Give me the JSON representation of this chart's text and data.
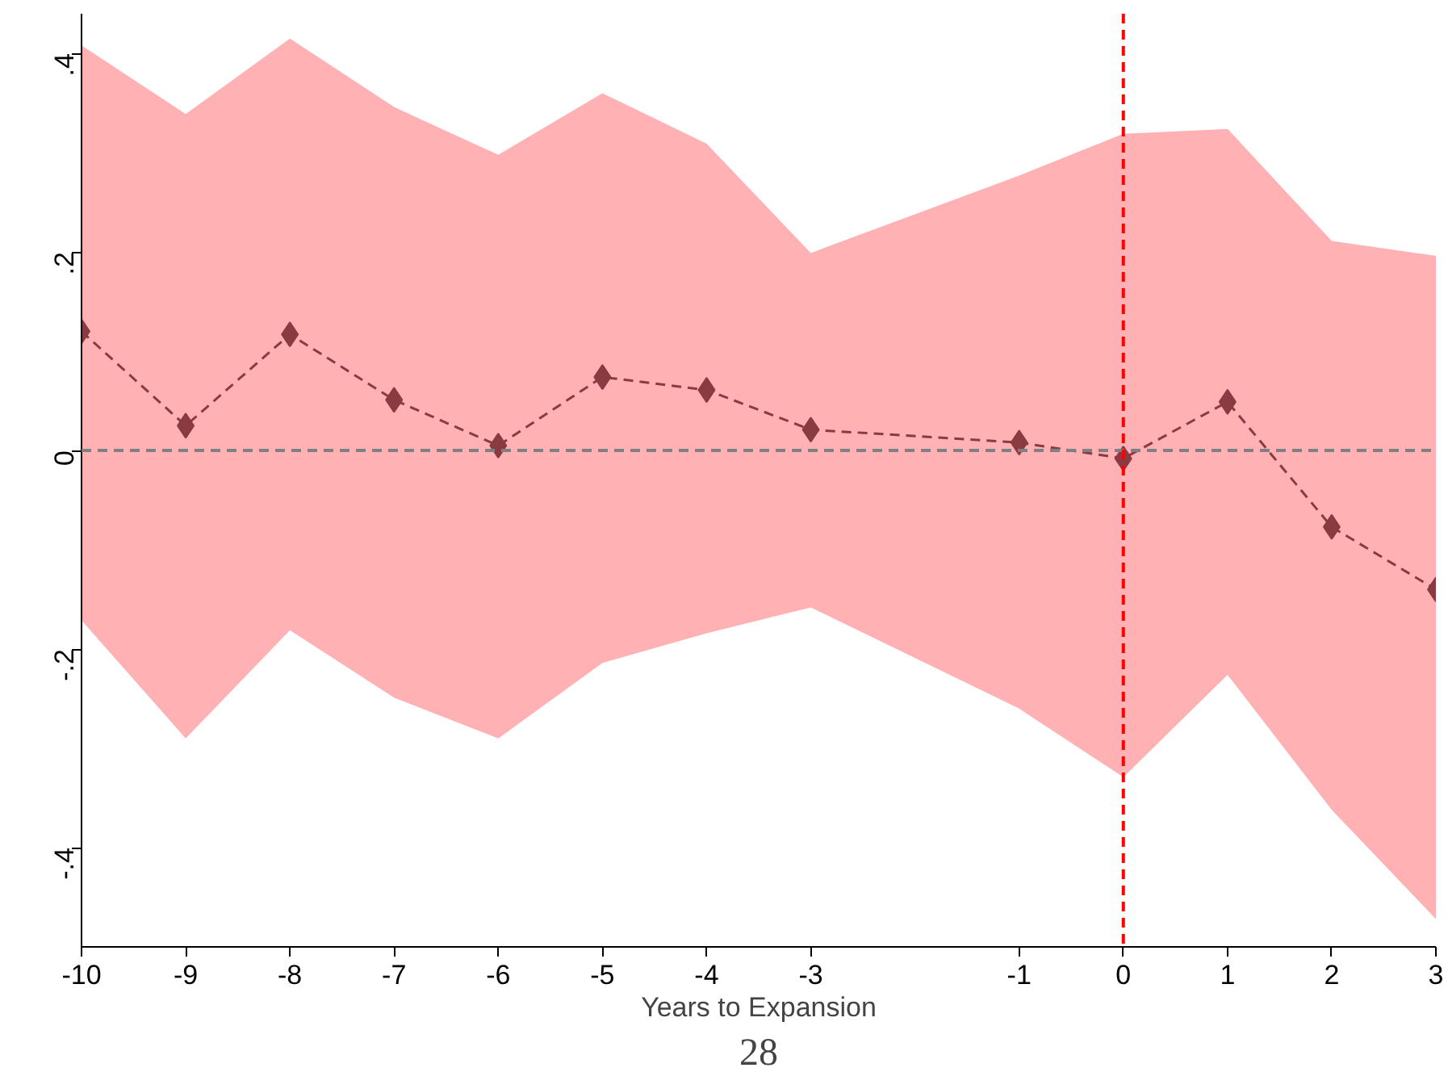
{
  "chart_data": {
    "type": "line",
    "xlabel": "Years to Expansion",
    "x": [
      -10,
      -9,
      -8,
      -7,
      -6,
      -5,
      -4,
      -3,
      -1,
      0,
      1,
      2,
      3
    ],
    "series": [
      {
        "color": "#8b3a41",
        "marker": "diamond",
        "line_style": "dashed",
        "values": [
          0.12,
          0.025,
          0.117,
          0.051,
          0.005,
          0.074,
          0.061,
          0.021,
          0.008,
          -0.008,
          0.049,
          -0.077,
          -0.14
        ],
        "lower": [
          -0.171,
          -0.29,
          -0.181,
          -0.249,
          -0.29,
          -0.214,
          -0.184,
          -0.158,
          -0.26,
          -0.329,
          -0.226,
          -0.362,
          -0.472
        ],
        "upper": [
          0.408,
          0.339,
          0.415,
          0.346,
          0.298,
          0.36,
          0.309,
          0.199,
          0.277,
          0.319,
          0.324,
          0.211,
          0.196
        ]
      }
    ],
    "xlim": [
      -10,
      3
    ],
    "ylim": [
      -0.5,
      0.44
    ],
    "xticks": [
      -10,
      -9,
      -8,
      -7,
      -6,
      -5,
      -4,
      -3,
      -1,
      0,
      1,
      2,
      3
    ],
    "yticks": [
      {
        "value": -0.4,
        "label": "-.4"
      },
      {
        "value": -0.2,
        "label": "-.2"
      },
      0,
      {
        "value": 0.2,
        "label": ".2"
      },
      {
        "value": 0.4,
        "label": ".4"
      }
    ],
    "ref_lines": [
      {
        "axis": "y",
        "value": 0,
        "color": "#808080",
        "line_style": "dashed"
      },
      {
        "axis": "x",
        "value": 0,
        "color": "#ff0000",
        "line_style": "dashed"
      }
    ],
    "grid": false,
    "annotations": [
      "28"
    ]
  }
}
